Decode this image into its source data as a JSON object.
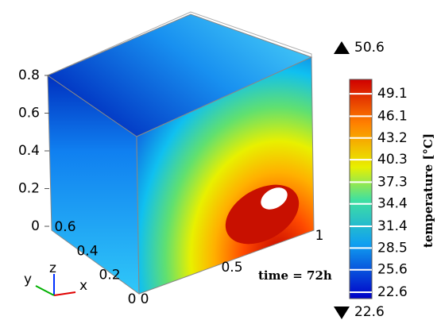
{
  "chart_data": {
    "type": "contour3d",
    "title": "time = 72h",
    "colorbar": {
      "label": "temperature [°C]",
      "lim": [
        22.6,
        50.6
      ],
      "ticks": [
        22.6,
        25.6,
        28.5,
        31.4,
        34.4,
        37.3,
        40.3,
        43.2,
        46.1,
        49.1
      ],
      "max": 50.6,
      "min": 22.6
    },
    "xticks": [
      0,
      0.5,
      1
    ],
    "yticks": [
      0,
      0.2,
      0.4,
      0.6
    ],
    "zticks": [
      0,
      0.2,
      0.4,
      0.6,
      0.8
    ],
    "axis_labels": [
      "x",
      "y",
      "z"
    ]
  }
}
